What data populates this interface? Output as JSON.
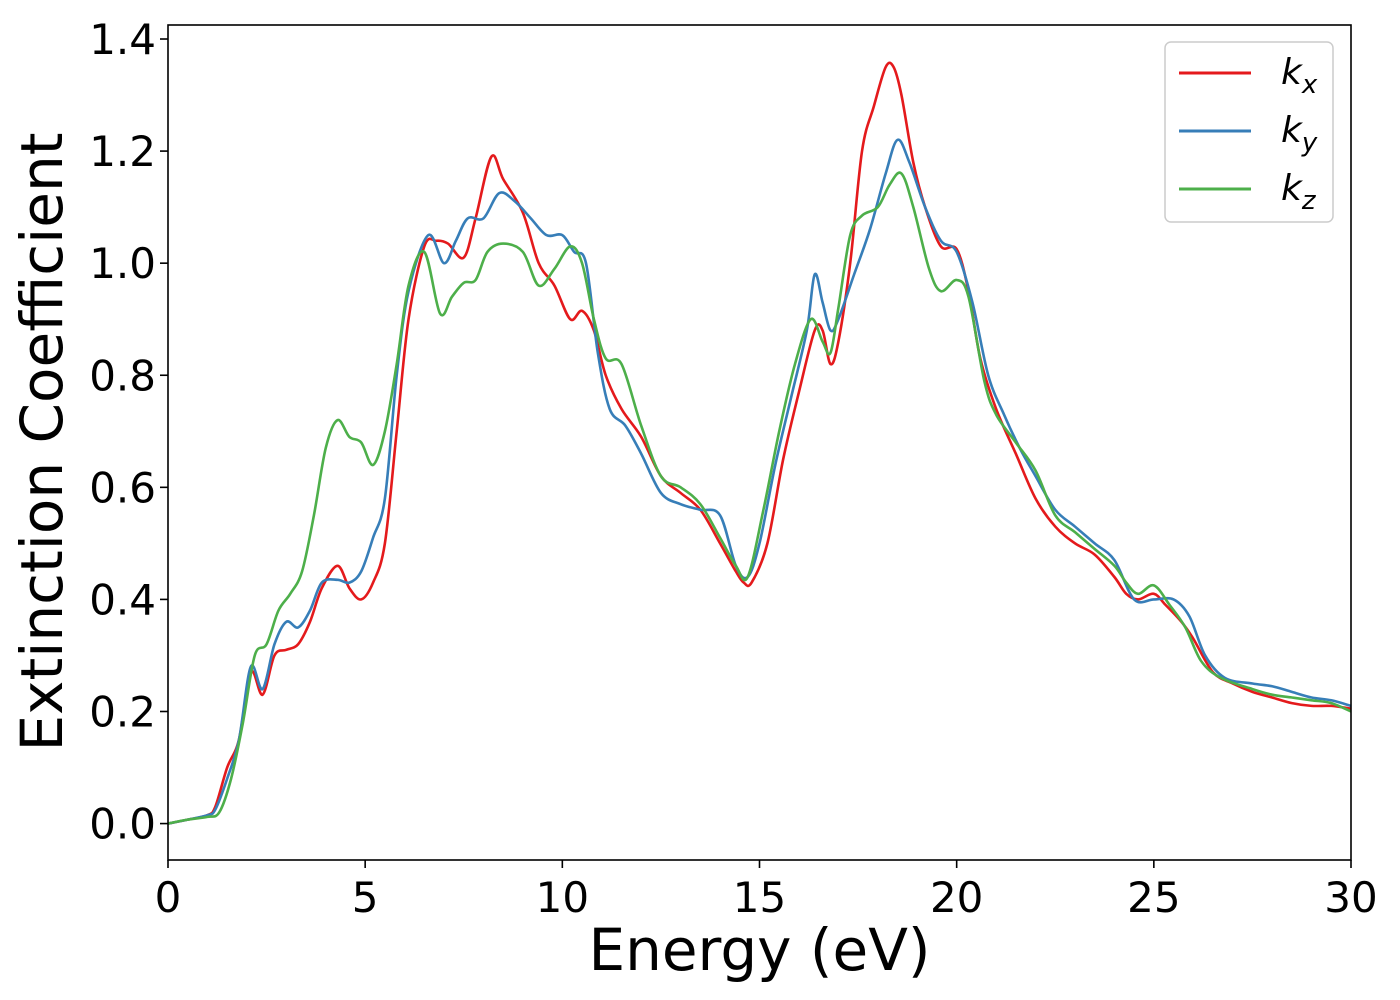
{
  "chart_data": {
    "type": "line",
    "title": "",
    "xlabel": "Energy (eV)",
    "ylabel": "Extinction Coefficient",
    "xlim": [
      0,
      30
    ],
    "ylim": [
      -0.065,
      1.425
    ],
    "xticks": [
      0,
      5,
      10,
      15,
      20,
      25,
      30
    ],
    "xtick_labels": [
      "0",
      "5",
      "10",
      "15",
      "20",
      "25",
      "30"
    ],
    "yticks": [
      0.0,
      0.2,
      0.4,
      0.6,
      0.8,
      1.0,
      1.2,
      1.4
    ],
    "ytick_labels": [
      "0.0",
      "0.2",
      "0.4",
      "0.6",
      "0.8",
      "1.0",
      "1.2",
      "1.4"
    ],
    "grid": false,
    "legend_position": "top-right",
    "series": [
      {
        "name": "k_x",
        "label_base": "k",
        "label_sub": "x",
        "color": "#e41a1c",
        "x": [
          0,
          0.5,
          1,
          1.2,
          1.5,
          1.8,
          2.1,
          2.4,
          2.7,
          3.0,
          3.3,
          3.6,
          3.9,
          4.3,
          4.6,
          4.9,
          5.2,
          5.5,
          5.8,
          6.1,
          6.5,
          6.8,
          7.1,
          7.5,
          7.8,
          8.2,
          8.5,
          9.0,
          9.4,
          9.8,
          10.2,
          10.5,
          10.8,
          11.1,
          11.5,
          12.0,
          12.5,
          13.0,
          13.5,
          14.0,
          14.4,
          14.6,
          14.8,
          15.2,
          15.6,
          16.0,
          16.4,
          16.6,
          16.8,
          17.0,
          17.3,
          17.6,
          17.9,
          18.2,
          18.4,
          18.6,
          18.9,
          19.2,
          19.6,
          20.0,
          20.3,
          20.6,
          21.0,
          21.5,
          22.0,
          22.5,
          23.0,
          23.5,
          24.0,
          24.3,
          24.6,
          25.0,
          25.3,
          25.7,
          26.0,
          26.5,
          27.0,
          27.5,
          28.0,
          28.5,
          29.0,
          29.5,
          30.0
        ],
        "y": [
          0.0,
          0.007,
          0.015,
          0.03,
          0.1,
          0.15,
          0.27,
          0.23,
          0.3,
          0.31,
          0.32,
          0.36,
          0.42,
          0.46,
          0.42,
          0.4,
          0.43,
          0.5,
          0.7,
          0.9,
          1.03,
          1.04,
          1.035,
          1.01,
          1.08,
          1.19,
          1.15,
          1.09,
          1.0,
          0.96,
          0.9,
          0.915,
          0.88,
          0.8,
          0.74,
          0.69,
          0.62,
          0.59,
          0.56,
          0.5,
          0.45,
          0.43,
          0.43,
          0.5,
          0.65,
          0.77,
          0.88,
          0.88,
          0.82,
          0.86,
          1.0,
          1.2,
          1.28,
          1.35,
          1.35,
          1.3,
          1.18,
          1.1,
          1.03,
          1.025,
          0.95,
          0.83,
          0.74,
          0.66,
          0.58,
          0.53,
          0.5,
          0.48,
          0.44,
          0.41,
          0.4,
          0.41,
          0.39,
          0.36,
          0.33,
          0.27,
          0.25,
          0.235,
          0.225,
          0.215,
          0.21,
          0.21,
          0.205
        ]
      },
      {
        "name": "k_y",
        "label_base": "k",
        "label_sub": "y",
        "color": "#377eb8",
        "x": [
          0,
          0.5,
          1,
          1.2,
          1.5,
          1.8,
          2.1,
          2.4,
          2.7,
          3.0,
          3.3,
          3.6,
          3.9,
          4.3,
          4.6,
          4.9,
          5.2,
          5.5,
          5.8,
          6.1,
          6.6,
          7.0,
          7.3,
          7.6,
          8.0,
          8.4,
          8.8,
          9.2,
          9.6,
          10.0,
          10.3,
          10.6,
          10.9,
          11.2,
          11.6,
          12.0,
          12.5,
          13.0,
          13.5,
          14.0,
          14.4,
          14.7,
          15.0,
          15.4,
          15.8,
          16.2,
          16.4,
          16.6,
          16.8,
          17.0,
          17.4,
          17.8,
          18.2,
          18.5,
          18.8,
          19.2,
          19.6,
          20.0,
          20.4,
          20.8,
          21.2,
          21.6,
          22.0,
          22.5,
          23.0,
          23.5,
          24.0,
          24.5,
          25.0,
          25.5,
          25.9,
          26.3,
          26.8,
          27.5,
          28.0,
          28.5,
          29.0,
          29.5,
          30.0
        ],
        "y": [
          0.0,
          0.007,
          0.015,
          0.025,
          0.08,
          0.15,
          0.28,
          0.24,
          0.32,
          0.36,
          0.35,
          0.38,
          0.43,
          0.435,
          0.43,
          0.45,
          0.51,
          0.58,
          0.8,
          0.95,
          1.05,
          1.0,
          1.04,
          1.08,
          1.08,
          1.125,
          1.11,
          1.08,
          1.05,
          1.05,
          1.02,
          1.0,
          0.84,
          0.74,
          0.71,
          0.66,
          0.59,
          0.57,
          0.56,
          0.55,
          0.46,
          0.44,
          0.5,
          0.64,
          0.76,
          0.88,
          0.98,
          0.93,
          0.88,
          0.9,
          0.98,
          1.06,
          1.16,
          1.22,
          1.18,
          1.1,
          1.04,
          1.02,
          0.93,
          0.8,
          0.73,
          0.67,
          0.62,
          0.56,
          0.53,
          0.5,
          0.47,
          0.4,
          0.4,
          0.4,
          0.37,
          0.3,
          0.26,
          0.25,
          0.245,
          0.235,
          0.225,
          0.22,
          0.21
        ]
      },
      {
        "name": "k_z",
        "label_base": "k",
        "label_sub": "z",
        "color": "#4daf4a",
        "x": [
          0,
          0.5,
          1,
          1.3,
          1.6,
          1.9,
          2.2,
          2.5,
          2.8,
          3.1,
          3.4,
          3.7,
          4.0,
          4.3,
          4.6,
          4.9,
          5.2,
          5.5,
          5.8,
          6.1,
          6.5,
          6.9,
          7.2,
          7.5,
          7.8,
          8.1,
          8.5,
          9.0,
          9.4,
          9.8,
          10.2,
          10.5,
          10.8,
          11.1,
          11.5,
          12.0,
          12.5,
          13.0,
          13.5,
          14.0,
          14.4,
          14.7,
          15.1,
          15.5,
          15.9,
          16.3,
          16.6,
          16.8,
          17.0,
          17.3,
          17.6,
          18.0,
          18.3,
          18.6,
          18.9,
          19.3,
          19.6,
          20.0,
          20.3,
          20.7,
          21.0,
          21.5,
          22.0,
          22.5,
          23.0,
          23.5,
          24.0,
          24.3,
          24.6,
          25.0,
          25.4,
          25.8,
          26.2,
          26.7,
          27.5,
          28.0,
          28.5,
          29.0,
          29.5,
          30.0
        ],
        "y": [
          0.0,
          0.007,
          0.012,
          0.02,
          0.08,
          0.18,
          0.3,
          0.32,
          0.38,
          0.41,
          0.45,
          0.55,
          0.67,
          0.72,
          0.69,
          0.68,
          0.64,
          0.7,
          0.82,
          0.96,
          1.02,
          0.91,
          0.94,
          0.965,
          0.97,
          1.02,
          1.035,
          1.02,
          0.96,
          0.99,
          1.03,
          1.0,
          0.9,
          0.83,
          0.82,
          0.71,
          0.62,
          0.6,
          0.57,
          0.51,
          0.46,
          0.44,
          0.56,
          0.7,
          0.82,
          0.9,
          0.86,
          0.84,
          0.92,
          1.05,
          1.085,
          1.1,
          1.14,
          1.16,
          1.1,
          0.99,
          0.95,
          0.97,
          0.94,
          0.79,
          0.73,
          0.68,
          0.63,
          0.55,
          0.52,
          0.49,
          0.46,
          0.43,
          0.41,
          0.425,
          0.39,
          0.35,
          0.29,
          0.26,
          0.24,
          0.23,
          0.225,
          0.22,
          0.215,
          0.2
        ]
      }
    ]
  }
}
